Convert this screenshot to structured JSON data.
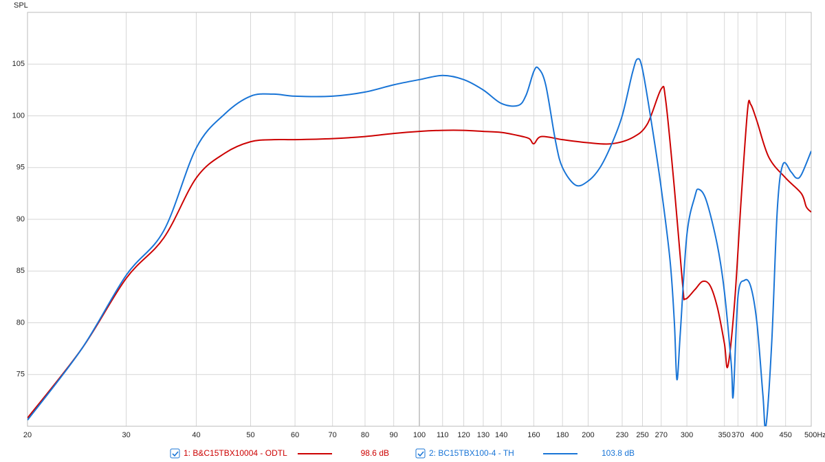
{
  "chart_data": {
    "type": "line",
    "y_label": "SPL",
    "xscale": "log",
    "grid": true,
    "xlim": [
      20,
      500
    ],
    "ylim": [
      70,
      110
    ],
    "xticks": [
      20,
      30,
      40,
      50,
      60,
      70,
      80,
      90,
      100,
      110,
      120,
      130,
      140,
      160,
      180,
      200,
      230,
      250,
      270,
      300,
      350,
      370,
      400,
      450,
      {
        "value": 500,
        "label": "500Hz"
      }
    ],
    "yticks": [
      75,
      80,
      85,
      90,
      95,
      100,
      105
    ],
    "series": [
      {
        "name": "1: B&C15TBX10004 - ODTL",
        "color": "#cc0000",
        "level": "98.6 dB",
        "x": [
          20,
          25,
          30,
          35,
          40,
          45,
          50,
          55,
          60,
          70,
          80,
          90,
          100,
          110,
          120,
          130,
          140,
          150,
          157,
          160,
          165,
          180,
          200,
          220,
          240,
          255,
          270,
          275,
          285,
          295,
          298,
          310,
          320,
          330,
          340,
          350,
          355,
          365,
          375,
          385,
          390,
          400,
          420,
          450,
          480,
          490,
          500
        ],
        "values": [
          70.8,
          77.5,
          84.3,
          88.2,
          94.0,
          96.4,
          97.5,
          97.7,
          97.7,
          97.8,
          98.0,
          98.3,
          98.5,
          98.6,
          98.6,
          98.5,
          98.4,
          98.1,
          97.8,
          97.3,
          98.0,
          97.7,
          97.4,
          97.3,
          97.9,
          99.2,
          102.6,
          101.5,
          93.0,
          83.5,
          82.3,
          83.2,
          84.0,
          83.6,
          81.5,
          78.0,
          75.8,
          82.0,
          92.0,
          100.6,
          101.1,
          99.5,
          96.0,
          94.0,
          92.5,
          91.2,
          90.7
        ]
      },
      {
        "name": "2: BC15TBX100-4 - TH",
        "color": "#1874d6",
        "level": "103.8 dB",
        "x": [
          20,
          25,
          30,
          35,
          40,
          45,
          50,
          55,
          60,
          70,
          80,
          90,
          100,
          110,
          120,
          130,
          140,
          150,
          155,
          160,
          163,
          168,
          175,
          180,
          190,
          200,
          210,
          220,
          230,
          240,
          245,
          250,
          260,
          270,
          280,
          285,
          288,
          292,
          300,
          310,
          315,
          325,
          340,
          350,
          360,
          363,
          370,
          380,
          390,
          400,
          410,
          415,
          425,
          435,
          445,
          460,
          470,
          480,
          500
        ],
        "values": [
          70.6,
          77.5,
          84.6,
          88.9,
          96.9,
          100.2,
          101.9,
          102.1,
          101.9,
          101.9,
          102.3,
          103.0,
          103.5,
          103.9,
          103.5,
          102.5,
          101.2,
          101.0,
          102.0,
          104.3,
          104.6,
          103.0,
          97.5,
          95.0,
          93.3,
          93.7,
          95.0,
          97.2,
          100.0,
          104.2,
          105.5,
          104.5,
          99.0,
          93.0,
          86.0,
          80.0,
          74.5,
          79.0,
          88.5,
          92.2,
          92.9,
          91.8,
          87.5,
          83.0,
          76.0,
          73.0,
          82.5,
          84.1,
          83.5,
          80.0,
          73.0,
          70.0,
          78.0,
          91.0,
          95.3,
          94.6,
          94.0,
          94.3,
          96.6
        ]
      }
    ]
  }
}
